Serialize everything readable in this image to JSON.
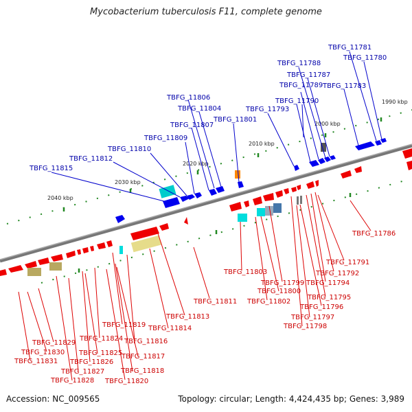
{
  "title": "Mycobacterium tuberculosis F11, complete genome",
  "footer": {
    "accession": "Accession: NC_009565",
    "topology": "Topology: circular; Length: 4,424,435 bp; Genes: 3,989"
  },
  "ticks": [
    "1990 kbp",
    "2000 kbp",
    "2010 kbp",
    "2020 kbp",
    "2030 kbp",
    "2040 kbp"
  ],
  "genes_forward": [
    "TBFG_11815",
    "TBFG_11812",
    "TBFG_11810",
    "TBFG_11809",
    "TBFG_11807",
    "TBFG_11806",
    "TBFG_11804",
    "TBFG_11801",
    "TBFG_11793",
    "TBFG_11790",
    "TBFG_11789",
    "TBFG_11788",
    "TBFG_11787",
    "TBFG_11783",
    "TBFG_11781",
    "TBFG_11780"
  ],
  "genes_reverse": [
    "TBFG_11786",
    "TBFG_11791",
    "TBFG_11792",
    "TBFG_11794",
    "TBFG_11795",
    "TBFG_11796",
    "TBFG_11797",
    "TBFG_11798",
    "TBFG_11799",
    "TBFG_11800",
    "TBFG_11802",
    "TBFG_11803",
    "TBFG_11811",
    "TBFG_11813",
    "TBFG_11814",
    "TBFG_11816",
    "TBFG_11817",
    "TBFG_11818",
    "TBFG_11819",
    "TBFG_11820",
    "TBFG_11824",
    "TBFG_11825",
    "TBFG_11826",
    "TBFG_11827",
    "TBFG_11828",
    "TBFG_11829",
    "TBFG_11830",
    "TBFG_11831"
  ],
  "colors": {
    "forward_gene": "#0000ee",
    "reverse_gene": "#ee0000",
    "forward_label": "#0000aa",
    "reverse_label": "#cc0000",
    "backbone": "#777777",
    "tick": "#228822",
    "cyan_feature": "#00cccc",
    "khaki_feature": "#e6dc8a",
    "olive_feature": "#b8a860",
    "orange_feature": "#ff8800",
    "gray_feature": "#666666",
    "steel_feature": "#4477aa"
  }
}
